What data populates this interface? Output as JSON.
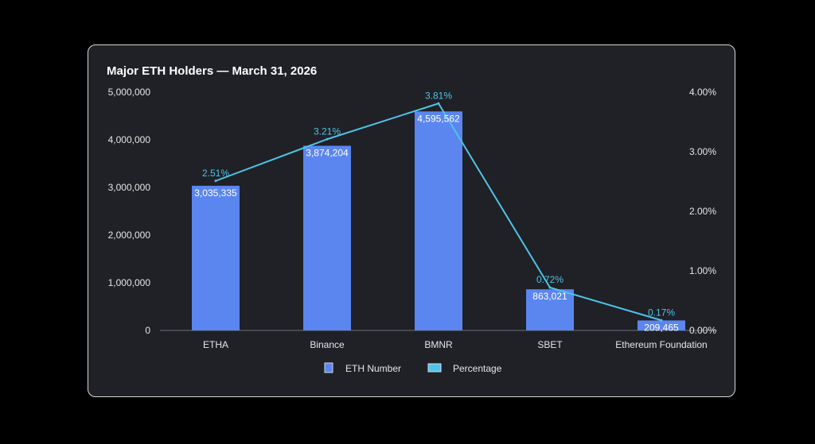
{
  "chart_data": {
    "type": "bar",
    "title": "Major ETH Holders — March 31, 2026",
    "categories": [
      "ETHA",
      "Binance",
      "BMNR",
      "SBET",
      "Ethereum Foundation"
    ],
    "series": [
      {
        "name": "ETH Number",
        "type": "bar",
        "axis": "left",
        "values": [
          3035335,
          3874204,
          4595562,
          863021,
          209465
        ],
        "labels": [
          "3,035,335",
          "3,874,204",
          "4,595,562",
          "863,021",
          "209,465"
        ]
      },
      {
        "name": "Percentage",
        "type": "line",
        "axis": "right",
        "values": [
          2.51,
          3.21,
          3.81,
          0.72,
          0.17
        ],
        "labels": [
          "2.51%",
          "3.21%",
          "3.81%",
          "0.72%",
          "0.17%"
        ]
      }
    ],
    "ylim": [
      0,
      5000000
    ],
    "y2lim": [
      0,
      4
    ],
    "yticks": [
      "0",
      "1,000,000",
      "2,000,000",
      "3,000,000",
      "4,000,000",
      "5,000,000"
    ],
    "y2ticks": [
      "0.00%",
      "1.00%",
      "2.00%",
      "3.00%",
      "4.00%"
    ],
    "grid": false,
    "legend_position": "bottom"
  },
  "colors": {
    "bar": "#5b86f0",
    "line": "#4fc3e8",
    "background": "#1f2126"
  }
}
